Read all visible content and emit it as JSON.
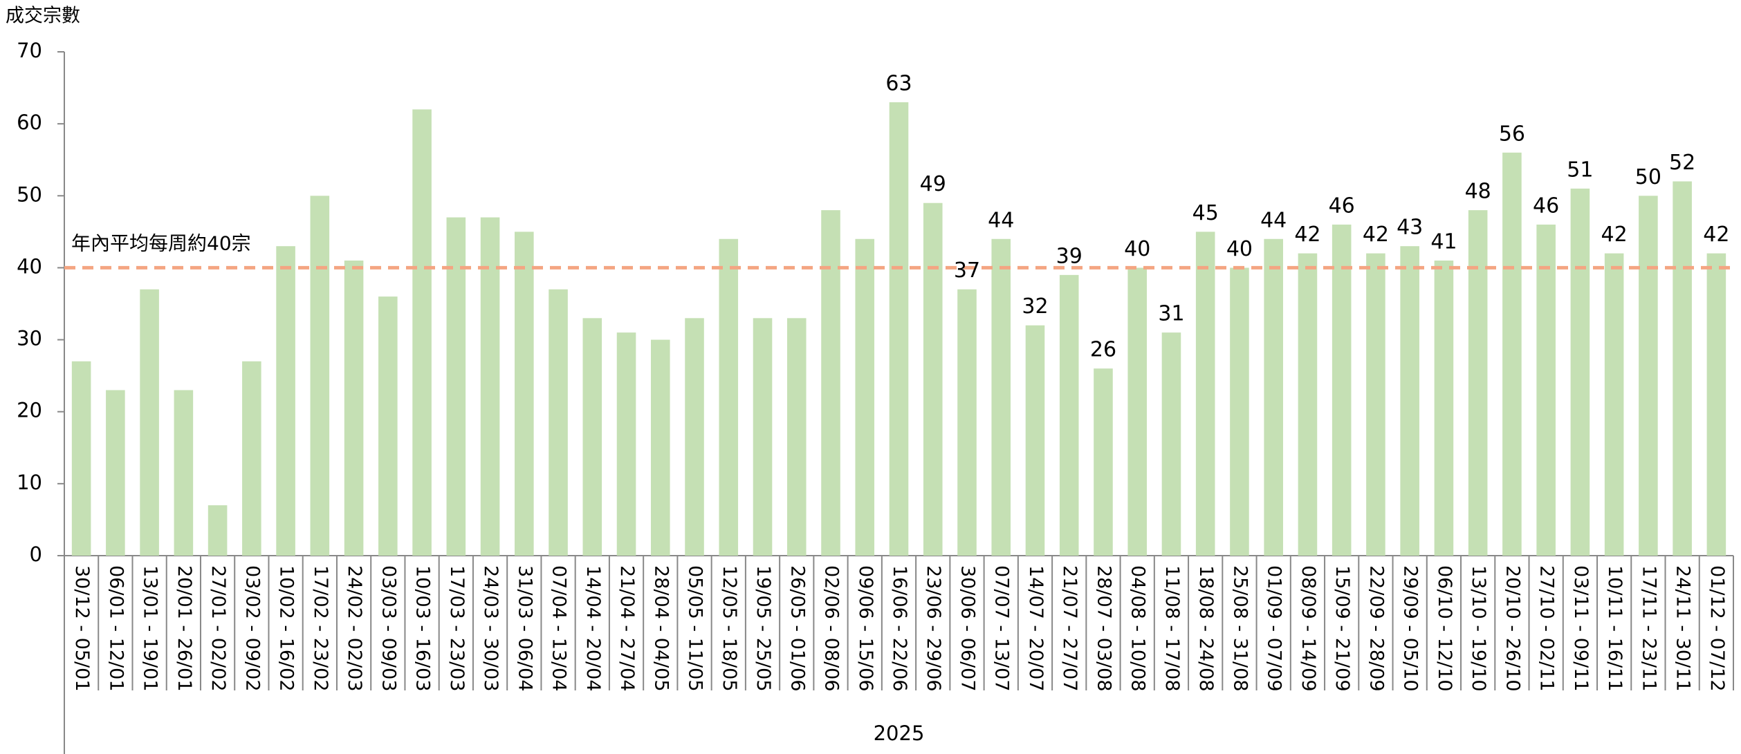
{
  "chart_data": {
    "type": "bar",
    "y_axis_label": "成交宗數",
    "x_axis_label": "2025",
    "categories": [
      "30/12 - 05/01",
      "06/01 - 12/01",
      "13/01 - 19/01",
      "20/01 - 26/01",
      "27/01 - 02/02",
      "03/02 - 09/02",
      "10/02 - 16/02",
      "17/02 - 23/02",
      "24/02 - 02/03",
      "03/03 - 09/03",
      "10/03 - 16/03",
      "17/03 - 23/03",
      "24/03 - 30/03",
      "31/03 - 06/04",
      "07/04 - 13/04",
      "14/04 - 20/04",
      "21/04 - 27/04",
      "28/04 - 04/05",
      "05/05 - 11/05",
      "12/05 - 18/05",
      "19/05 - 25/05",
      "26/05 - 01/06",
      "02/06 - 08/06",
      "09/06 - 15/06",
      "16/06 - 22/06",
      "23/06 - 29/06",
      "30/06 - 06/07",
      "07/07 - 13/07",
      "14/07 - 20/07",
      "21/07 - 27/07",
      "28/07 - 03/08",
      "04/08 - 10/08",
      "11/08 - 17/08",
      "18/08 - 24/08",
      "25/08 - 31/08",
      "01/09 - 07/09",
      "08/09 - 14/09",
      "15/09 - 21/09",
      "22/09 - 28/09",
      "29/09 - 05/10",
      "06/10 - 12/10",
      "13/10 - 19/10",
      "20/10 - 26/10",
      "27/10 - 02/11",
      "03/11 - 09/11",
      "10/11 - 16/11",
      "17/11 - 23/11",
      "24/11 - 30/11",
      "01/12 - 07/12"
    ],
    "values": [
      27,
      23,
      37,
      23,
      7,
      27,
      43,
      50,
      41,
      36,
      62,
      47,
      47,
      45,
      37,
      33,
      31,
      30,
      33,
      44,
      33,
      33,
      48,
      44,
      63,
      49,
      37,
      44,
      32,
      39,
      26,
      40,
      31,
      45,
      40,
      44,
      42,
      46,
      42,
      43,
      41,
      48,
      56,
      46,
      51,
      42,
      50,
      52,
      42
    ],
    "value_labels": [
      null,
      null,
      null,
      null,
      null,
      null,
      null,
      null,
      null,
      null,
      null,
      null,
      null,
      null,
      null,
      null,
      null,
      null,
      null,
      null,
      null,
      null,
      null,
      null,
      "63",
      "49",
      "37",
      "44",
      "32",
      "39",
      "26",
      "40",
      "31",
      "45",
      "40",
      "44",
      "42",
      "46",
      "42",
      "43",
      "41",
      "48",
      "56",
      "46",
      "51",
      "42",
      "50",
      "52",
      "42"
    ],
    "color": "#c5e0b4",
    "ylim": [
      0,
      70
    ],
    "yticks": [
      0,
      10,
      20,
      30,
      40,
      50,
      60,
      70
    ],
    "grid": false,
    "reference_line": {
      "value": 40,
      "label": "年內平均每周約40宗",
      "color": "#f4a582",
      "label_color": "#e8000b"
    }
  }
}
